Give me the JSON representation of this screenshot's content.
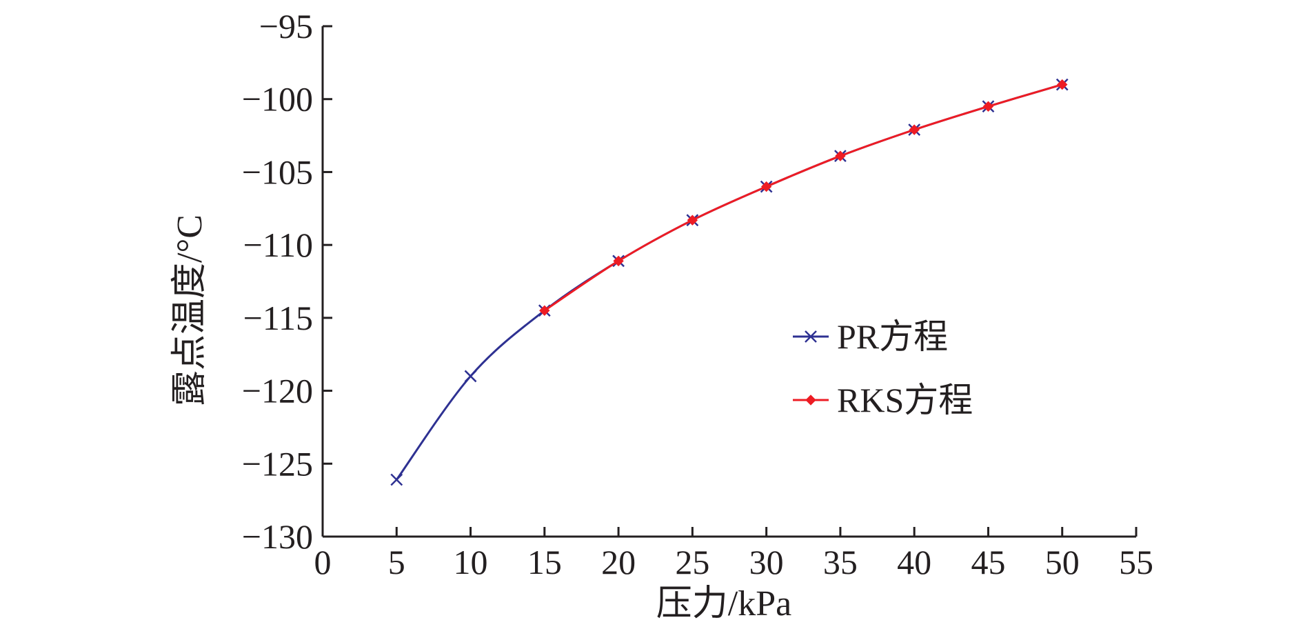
{
  "chart_data": {
    "type": "line",
    "xlabel": "压力/kPa",
    "ylabel": "露点温度/°C",
    "xlim": [
      0,
      55
    ],
    "ylim": [
      -130,
      -95
    ],
    "xticks": [
      0,
      5,
      10,
      15,
      20,
      25,
      30,
      35,
      40,
      45,
      50,
      55
    ],
    "yticks": [
      -95,
      -100,
      -105,
      -110,
      -115,
      -120,
      -125,
      -130
    ],
    "grid": false,
    "legend_position": "center-right",
    "series": [
      {
        "name": "PR方程",
        "color": "#2e3192",
        "marker": "x",
        "x": [
          5,
          10,
          15,
          20,
          25,
          30,
          35,
          40,
          45,
          50
        ],
        "y": [
          -126.1,
          -119.0,
          -114.5,
          -111.1,
          -108.3,
          -106.0,
          -103.9,
          -102.1,
          -100.5,
          -99.0
        ]
      },
      {
        "name": "RKS方程",
        "color": "#ed1c24",
        "marker": "diamond",
        "x": [
          15,
          20,
          25,
          30,
          35,
          40,
          45,
          50
        ],
        "y": [
          -114.5,
          -111.1,
          -108.3,
          -106.0,
          -103.9,
          -102.1,
          -100.5,
          -99.0
        ]
      }
    ]
  }
}
